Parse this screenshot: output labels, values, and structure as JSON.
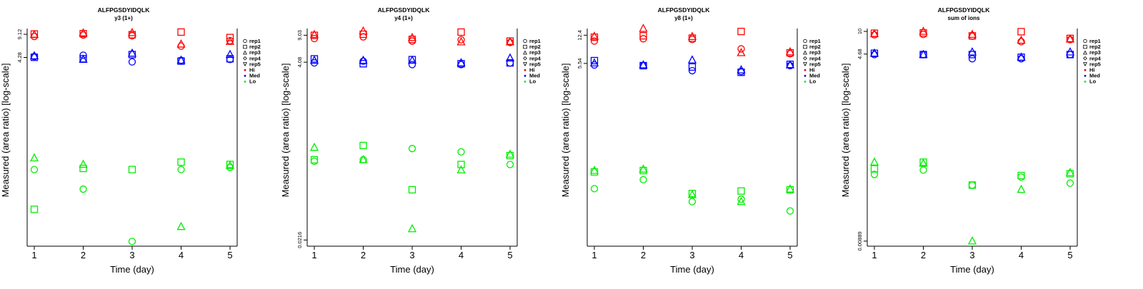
{
  "figure": {
    "ylabel": "Measured (area ratio) [log-scale]",
    "xlabel": "Time (day)"
  },
  "legend": {
    "items": [
      {
        "label": "rep1",
        "symbol": "circle"
      },
      {
        "label": "rep2",
        "symbol": "square"
      },
      {
        "label": "rep3",
        "symbol": "triangle-up"
      },
      {
        "label": "rep4",
        "symbol": "diamond"
      },
      {
        "label": "rep5",
        "symbol": "triangle-down"
      },
      {
        "label": "Hi",
        "symbol": "dot",
        "color": "#ff0000"
      },
      {
        "label": "Med",
        "symbol": "dot",
        "color": "#0000ff"
      },
      {
        "label": "Lo",
        "symbol": "dot",
        "color": "#00ee00"
      }
    ]
  },
  "colors": {
    "Hi": "#ff0000",
    "Med": "#0000ff",
    "Lo": "#00ee00"
  },
  "chart_data": [
    {
      "type": "scatter",
      "title": "ALFPGSDYIDQLK",
      "subtitle": "y3 (1+)",
      "xlabel": "Time (day)",
      "ylabel": "Measured (area ratio) [log-scale]",
      "x_ticks": [
        1,
        2,
        3,
        4,
        5
      ],
      "y_scale": "log",
      "y_ticks": [
        "4.28",
        "9.12"
      ],
      "ylim": [
        0.009,
        11
      ],
      "series": [
        {
          "level": "Hi",
          "rep": "rep1",
          "points": [
            [
              1,
              8.5
            ],
            [
              2,
              8.9
            ],
            [
              3,
              8.7
            ],
            [
              4,
              6.2
            ],
            [
              5,
              7.4
            ]
          ]
        },
        {
          "level": "Hi",
          "rep": "rep2",
          "points": [
            [
              1,
              9.2
            ],
            [
              2,
              9.3
            ],
            [
              3,
              9.0
            ],
            [
              4,
              9.8
            ],
            [
              5,
              8.2
            ]
          ]
        },
        {
          "level": "Hi",
          "rep": "rep3",
          "points": [
            [
              1,
              9.0
            ],
            [
              2,
              9.5
            ],
            [
              3,
              9.6
            ],
            [
              4,
              6.6
            ],
            [
              5,
              7.2
            ]
          ]
        },
        {
          "level": "Med",
          "rep": "rep1",
          "points": [
            [
              1,
              4.4
            ],
            [
              2,
              4.6
            ],
            [
              3,
              3.7
            ],
            [
              4,
              3.9
            ],
            [
              5,
              4.0
            ]
          ]
        },
        {
          "level": "Med",
          "rep": "rep2",
          "points": [
            [
              1,
              4.3
            ],
            [
              2,
              4.1
            ],
            [
              3,
              4.7
            ],
            [
              4,
              3.8
            ],
            [
              5,
              4.1
            ]
          ]
        },
        {
          "level": "Med",
          "rep": "rep3",
          "points": [
            [
              1,
              4.5
            ],
            [
              2,
              4.0
            ],
            [
              3,
              4.9
            ],
            [
              4,
              3.9
            ],
            [
              5,
              4.7
            ]
          ]
        },
        {
          "level": "Lo",
          "rep": "rep1",
          "points": [
            [
              1,
              0.11
            ],
            [
              2,
              0.058
            ],
            [
              3,
              0.0105
            ],
            [
              4,
              0.11
            ],
            [
              5,
              0.118
            ]
          ]
        },
        {
          "level": "Lo",
          "rep": "rep2",
          "points": [
            [
              1,
              0.03
            ],
            [
              2,
              0.114
            ],
            [
              3,
              0.11
            ],
            [
              4,
              0.14
            ],
            [
              5,
              0.13
            ]
          ]
        },
        {
          "level": "Lo",
          "rep": "rep3",
          "points": [
            [
              1,
              0.16
            ],
            [
              2,
              0.13
            ],
            [
              4,
              0.017
            ],
            [
              5,
              0.125
            ]
          ]
        }
      ]
    },
    {
      "type": "scatter",
      "title": "ALFPGSDYIDQLK",
      "subtitle": "y4 (1+)",
      "xlabel": "Time (day)",
      "ylabel": "Measured (area ratio) [log-scale]",
      "x_ticks": [
        1,
        2,
        3,
        4,
        5
      ],
      "y_scale": "log",
      "y_ticks": [
        "0.0216",
        "4.08",
        "9.03"
      ],
      "ylim": [
        0.018,
        11
      ],
      "series": [
        {
          "level": "Hi",
          "rep": "rep1",
          "points": [
            [
              1,
              8.2
            ],
            [
              2,
              8.6
            ],
            [
              3,
              7.6
            ],
            [
              4,
              7.9
            ],
            [
              5,
              7.3
            ]
          ]
        },
        {
          "level": "Hi",
          "rep": "rep2",
          "points": [
            [
              1,
              9.0
            ],
            [
              2,
              9.3
            ],
            [
              3,
              8.0
            ],
            [
              4,
              9.9
            ],
            [
              5,
              7.6
            ]
          ]
        },
        {
          "level": "Hi",
          "rep": "rep3",
          "points": [
            [
              1,
              9.2
            ],
            [
              2,
              10.2
            ],
            [
              3,
              8.4
            ],
            [
              4,
              7.4
            ],
            [
              5,
              7.4
            ]
          ]
        },
        {
          "level": "Med",
          "rep": "rep1",
          "points": [
            [
              1,
              4.0
            ],
            [
              2,
              4.2
            ],
            [
              3,
              3.8
            ],
            [
              4,
              3.8
            ],
            [
              5,
              4.0
            ]
          ]
        },
        {
          "level": "Med",
          "rep": "rep2",
          "points": [
            [
              1,
              4.5
            ],
            [
              2,
              3.9
            ],
            [
              3,
              4.4
            ],
            [
              4,
              3.9
            ],
            [
              5,
              4.0
            ]
          ]
        },
        {
          "level": "Med",
          "rep": "rep3",
          "points": [
            [
              1,
              4.3
            ],
            [
              2,
              4.3
            ],
            [
              3,
              4.3
            ],
            [
              4,
              4.0
            ],
            [
              5,
              4.6
            ]
          ]
        },
        {
          "level": "Lo",
          "rep": "rep1",
          "points": [
            [
              1,
              0.22
            ],
            [
              2,
              0.23
            ],
            [
              3,
              0.32
            ],
            [
              4,
              0.29
            ],
            [
              5,
              0.2
            ]
          ]
        },
        {
          "level": "Lo",
          "rep": "rep2",
          "points": [
            [
              1,
              0.23
            ],
            [
              2,
              0.35
            ],
            [
              3,
              0.095
            ],
            [
              4,
              0.2
            ],
            [
              5,
              0.26
            ]
          ]
        },
        {
          "level": "Lo",
          "rep": "rep3",
          "points": [
            [
              1,
              0.33
            ],
            [
              2,
              0.23
            ],
            [
              3,
              0.03
            ],
            [
              4,
              0.17
            ],
            [
              5,
              0.27
            ]
          ]
        }
      ]
    },
    {
      "type": "scatter",
      "title": "ALFPGSDYIDQLK",
      "subtitle": "y8 (1+)",
      "xlabel": "Time (day)",
      "ylabel": "Measured (area ratio) [log-scale]",
      "x_ticks": [
        1,
        2,
        3,
        4,
        5
      ],
      "y_scale": "log",
      "y_ticks": [
        "5.54",
        "12.4"
      ],
      "ylim": [
        0.03,
        15
      ],
      "series": [
        {
          "level": "Hi",
          "rep": "rep1",
          "points": [
            [
              1,
              10.5
            ],
            [
              2,
              11.2
            ],
            [
              3,
              11.0
            ],
            [
              4,
              8.4
            ],
            [
              5,
              7.3
            ]
          ]
        },
        {
          "level": "Hi",
          "rep": "rep2",
          "points": [
            [
              1,
              11.7
            ],
            [
              2,
              12.2
            ],
            [
              3,
              11.4
            ],
            [
              4,
              13.8
            ],
            [
              5,
              7.5
            ]
          ]
        },
        {
          "level": "Hi",
          "rep": "rep3",
          "points": [
            [
              1,
              12.0
            ],
            [
              2,
              15.0
            ],
            [
              3,
              11.9
            ],
            [
              4,
              7.5
            ],
            [
              5,
              7.7
            ]
          ]
        },
        {
          "level": "Med",
          "rep": "rep1",
          "points": [
            [
              1,
              5.3
            ],
            [
              2,
              5.2
            ],
            [
              3,
              4.5
            ],
            [
              4,
              4.4
            ],
            [
              5,
              5.2
            ]
          ]
        },
        {
          "level": "Med",
          "rep": "rep2",
          "points": [
            [
              1,
              6.0
            ],
            [
              2,
              5.2
            ],
            [
              3,
              5.0
            ],
            [
              4,
              4.3
            ],
            [
              5,
              5.4
            ]
          ]
        },
        {
          "level": "Med",
          "rep": "rep3",
          "points": [
            [
              1,
              5.6
            ],
            [
              2,
              5.3
            ],
            [
              3,
              6.1
            ],
            [
              4,
              4.6
            ],
            [
              5,
              5.3
            ]
          ]
        },
        {
          "level": "Lo",
          "rep": "rep1",
          "points": [
            [
              1,
              0.155
            ],
            [
              2,
              0.2
            ],
            [
              3,
              0.107
            ],
            [
              4,
              0.115
            ],
            [
              5,
              0.082
            ]
          ]
        },
        {
          "level": "Lo",
          "rep": "rep2",
          "points": [
            [
              1,
              0.25
            ],
            [
              2,
              0.26
            ],
            [
              3,
              0.135
            ],
            [
              4,
              0.145
            ],
            [
              5,
              0.15
            ]
          ]
        },
        {
          "level": "Lo",
          "rep": "rep3",
          "points": [
            [
              1,
              0.26
            ],
            [
              2,
              0.27
            ],
            [
              3,
              0.13
            ],
            [
              4,
              0.107
            ],
            [
              5,
              0.153
            ]
          ]
        }
      ]
    },
    {
      "type": "scatter",
      "title": "ALFPGSDYIDQLK",
      "subtitle": "sum of ions",
      "xlabel": "Time (day)",
      "ylabel": "Measured (area ratio) [log-scale]",
      "x_ticks": [
        1,
        2,
        3,
        4,
        5
      ],
      "y_scale": "log",
      "y_ticks": [
        "0.00889",
        "4.68",
        "10"
      ],
      "ylim": [
        0.0075,
        11
      ],
      "series": [
        {
          "level": "Hi",
          "rep": "rep1",
          "points": [
            [
              1,
              8.9
            ],
            [
              2,
              9.0
            ],
            [
              3,
              8.5
            ],
            [
              4,
              7.1
            ],
            [
              5,
              7.6
            ]
          ]
        },
        {
          "level": "Hi",
          "rep": "rep2",
          "points": [
            [
              1,
              9.4
            ],
            [
              2,
              9.5
            ],
            [
              3,
              8.6
            ],
            [
              4,
              9.9
            ],
            [
              5,
              7.9
            ]
          ]
        },
        {
          "level": "Hi",
          "rep": "rep3",
          "points": [
            [
              1,
              9.2
            ],
            [
              2,
              10.0
            ],
            [
              3,
              9.0
            ],
            [
              4,
              7.4
            ],
            [
              5,
              7.7
            ]
          ]
        },
        {
          "level": "Med",
          "rep": "rep1",
          "points": [
            [
              1,
              4.6
            ],
            [
              2,
              4.6
            ],
            [
              3,
              4.0
            ],
            [
              4,
              4.0
            ],
            [
              5,
              4.6
            ]
          ]
        },
        {
          "level": "Med",
          "rep": "rep2",
          "points": [
            [
              1,
              4.8
            ],
            [
              2,
              4.6
            ],
            [
              3,
              4.6
            ],
            [
              4,
              4.2
            ],
            [
              5,
              4.6
            ]
          ]
        },
        {
          "level": "Med",
          "rep": "rep3",
          "points": [
            [
              1,
              4.8
            ],
            [
              2,
              4.6
            ],
            [
              3,
              5.0
            ],
            [
              4,
              4.2
            ],
            [
              5,
              5.0
            ]
          ]
        },
        {
          "level": "Lo",
          "rep": "rep1",
          "points": [
            [
              1,
              0.083
            ],
            [
              2,
              0.096
            ],
            [
              3,
              0.058
            ],
            [
              4,
              0.076
            ],
            [
              5,
              0.062
            ]
          ]
        },
        {
          "level": "Lo",
          "rep": "rep2",
          "points": [
            [
              1,
              0.1
            ],
            [
              2,
              0.125
            ],
            [
              3,
              0.058
            ],
            [
              4,
              0.08
            ],
            [
              5,
              0.085
            ]
          ]
        },
        {
          "level": "Lo",
          "rep": "rep3",
          "points": [
            [
              1,
              0.125
            ],
            [
              2,
              0.12
            ],
            [
              3,
              0.0089
            ],
            [
              4,
              0.05
            ],
            [
              5,
              0.088
            ]
          ]
        }
      ]
    }
  ]
}
